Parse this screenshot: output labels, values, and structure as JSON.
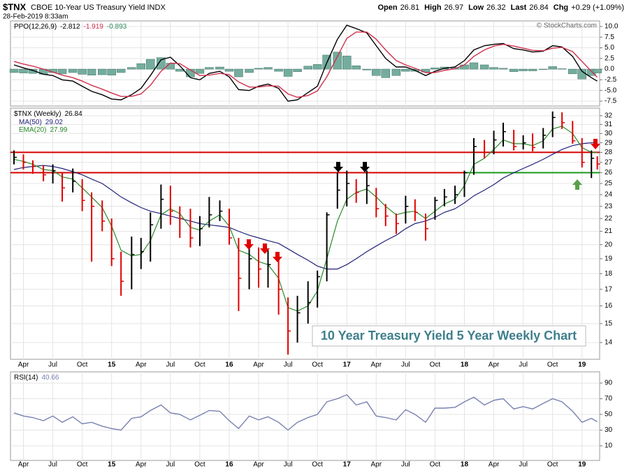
{
  "header": {
    "symbol": "$TNX",
    "name": "CBOE 10-Year US Treasury Yield INDX",
    "datetime": "28-Feb-2019 8:33am",
    "quote": [
      {
        "label": "Open",
        "value": "26.81"
      },
      {
        "label": "High",
        "value": "26.97"
      },
      {
        "label": "Low",
        "value": "26.32"
      },
      {
        "label": "Last",
        "value": "26.84"
      },
      {
        "label": "Chg",
        "value": "+0.29 (+1.09%)"
      }
    ]
  },
  "copyright": "© StockCharts.com",
  "chart_data": [
    {
      "type": "line",
      "legend_label": "PPO(12,26,9)",
      "ylim": [
        -8.65,
        11.3
      ],
      "grid": true,
      "yticks": [
        {
          "value": 10,
          "label": "10.0"
        },
        7.5,
        {
          "value": 5,
          "label": "5.0"
        },
        2.5,
        {
          "value": 0,
          "label": "0.0"
        },
        -2.5,
        {
          "value": -5,
          "label": "-5.0"
        },
        -7.5
      ],
      "histogram": {
        "color": "#74ad9e",
        "values": [
          -0.8,
          -0.9,
          -1.0,
          -1.2,
          -0.8,
          -1.1,
          -0.8,
          -1.2,
          -1.4,
          -1.3,
          -1.4,
          -0.8,
          0.4,
          1.3,
          2.3,
          2.7,
          1.4,
          -0.5,
          -1.8,
          -1.0,
          0.4,
          0.5,
          -0.5,
          -1.8,
          -0.8,
          0.2,
          0.4,
          -0.5,
          -1.7,
          -0.6,
          0.7,
          1.1,
          3.3,
          4.0,
          3.1,
          0.8,
          -0.2,
          -1.5,
          -2.0,
          -1.5,
          -0.5,
          -0.5,
          -0.7,
          0.3,
          0.5,
          0.4,
          1.0,
          1.5,
          1.0,
          0.4,
          0.2,
          -0.6,
          -0.4,
          -0.4,
          -0.1,
          0.6,
          0.1,
          -1.1,
          -2.3,
          -1.5,
          -0.893
        ]
      },
      "series": [
        {
          "color": "#000000",
          "values": [
            1.0,
            0.3,
            -0.3,
            -1.2,
            -1.5,
            -2.5,
            -2.8,
            -4.0,
            -5.2,
            -6.0,
            -7.0,
            -7.2,
            -6.0,
            -4.5,
            -1.5,
            2.2,
            2.8,
            0.8,
            -2.0,
            -2.5,
            -1.0,
            -0.5,
            -1.8,
            -4.8,
            -5.0,
            -4.0,
            -3.5,
            -4.5,
            -7.5,
            -7.2,
            -5.5,
            -4.0,
            1.5,
            7.0,
            10.3,
            9.5,
            8.5,
            5.5,
            2.5,
            0.5,
            0.5,
            -0.3,
            -1.5,
            -0.5,
            0.2,
            0.5,
            2.0,
            4.5,
            5.5,
            5.8,
            6.0,
            4.8,
            4.5,
            4.0,
            4.2,
            5.5,
            5.2,
            3.0,
            -0.5,
            -2.0,
            -2.812
          ]
        },
        {
          "color": "#d0304e",
          "values": [
            1.8,
            1.2,
            0.7,
            0.0,
            -0.7,
            -1.4,
            -2.0,
            -2.8,
            -3.8,
            -4.7,
            -5.6,
            -6.4,
            -6.4,
            -5.8,
            -3.8,
            -0.5,
            1.4,
            1.3,
            -0.2,
            -1.5,
            -1.4,
            -1.0,
            -1.3,
            -3.0,
            -4.2,
            -4.2,
            -3.9,
            -4.0,
            -5.8,
            -6.6,
            -6.2,
            -5.1,
            -1.8,
            3.0,
            7.2,
            8.7,
            8.7,
            7.0,
            4.5,
            2.0,
            1.0,
            0.2,
            -0.8,
            -0.8,
            -0.3,
            0.1,
            1.0,
            3.0,
            4.5,
            5.4,
            5.8,
            5.4,
            4.9,
            4.4,
            4.3,
            4.9,
            5.1,
            4.1,
            1.8,
            -0.5,
            -1.919
          ]
        }
      ]
    },
    {
      "type": "ohlc",
      "name": "$TNX (Weekly)",
      "log_scale": true,
      "ylim": [
        13.17,
        32.9
      ],
      "grid": true,
      "yticks": [
        14,
        15,
        16,
        17,
        18,
        19,
        20,
        21,
        22,
        23,
        24,
        25,
        26,
        27,
        28,
        29,
        30,
        31,
        32
      ],
      "xlim": [
        2014.14,
        2019.15
      ],
      "xticks": [
        {
          "value": 2014.25,
          "label": "Apr"
        },
        {
          "value": 2014.5,
          "label": "Jul"
        },
        {
          "value": 2014.75,
          "label": "Oct"
        },
        {
          "value": 2015.0,
          "label": "15"
        },
        {
          "value": 2015.25,
          "label": "Apr"
        },
        {
          "value": 2015.5,
          "label": "Jul"
        },
        {
          "value": 2015.75,
          "label": "Oct"
        },
        {
          "value": 2016.0,
          "label": "16"
        },
        {
          "value": 2016.25,
          "label": "Apr"
        },
        {
          "value": 2016.5,
          "label": "Jul"
        },
        {
          "value": 2016.75,
          "label": "Oct"
        },
        {
          "value": 2017.0,
          "label": "17"
        },
        {
          "value": 2017.25,
          "label": "Apr"
        },
        {
          "value": 2017.5,
          "label": "Jul"
        },
        {
          "value": 2017.75,
          "label": "Oct"
        },
        {
          "value": 2018.0,
          "label": "18"
        },
        {
          "value": 2018.25,
          "label": "Apr"
        },
        {
          "value": 2018.5,
          "label": "Jul"
        },
        {
          "value": 2018.75,
          "label": "Oct"
        },
        {
          "value": 2019.0,
          "label": "19"
        }
      ],
      "x": [
        2014.17,
        2014.25,
        2014.33,
        2014.42,
        2014.5,
        2014.58,
        2014.67,
        2014.75,
        2014.83,
        2014.92,
        2015.0,
        2015.08,
        2015.17,
        2015.25,
        2015.33,
        2015.42,
        2015.5,
        2015.58,
        2015.67,
        2015.75,
        2015.83,
        2015.92,
        2016.0,
        2016.08,
        2016.17,
        2016.25,
        2016.33,
        2016.42,
        2016.5,
        2016.58,
        2016.67,
        2016.75,
        2016.83,
        2016.92,
        2017.0,
        2017.08,
        2017.17,
        2017.25,
        2017.33,
        2017.42,
        2017.5,
        2017.58,
        2017.67,
        2017.75,
        2017.83,
        2017.92,
        2018.0,
        2018.08,
        2018.17,
        2018.25,
        2018.33,
        2018.42,
        2018.5,
        2018.58,
        2018.67,
        2018.75,
        2018.83,
        2018.92,
        2019.0,
        2019.08,
        2019.13
      ],
      "high": [
        28.2,
        27.8,
        27.2,
        26.7,
        26.8,
        26.0,
        26.4,
        25.4,
        24.2,
        23.5,
        22.0,
        19.5,
        20.6,
        20.5,
        22.5,
        24.9,
        24.8,
        23.0,
        22.8,
        22.2,
        23.8,
        23.5,
        22.8,
        20.5,
        20.2,
        19.8,
        19.6,
        18.9,
        16.5,
        16.6,
        17.5,
        18.2,
        22.5,
        26.0,
        26.2,
        25.4,
        26.2,
        24.6,
        23.2,
        22.4,
        23.9,
        23.6,
        22.4,
        23.8,
        24.5,
        24.8,
        26.2,
        29.5,
        29.3,
        30.3,
        31.2,
        30.4,
        29.8,
        30.0,
        30.6,
        32.5,
        32.4,
        31.4,
        29.5,
        28.2,
        27.6
      ],
      "low": [
        26.8,
        26.3,
        25.9,
        25.2,
        25.0,
        23.4,
        24.2,
        22.6,
        18.8,
        21.0,
        18.5,
        16.6,
        17.0,
        18.3,
        18.8,
        21.2,
        21.5,
        20.5,
        19.8,
        19.9,
        21.3,
        21.8,
        20.0,
        15.7,
        17.0,
        17.1,
        17.1,
        15.5,
        13.4,
        14.0,
        15.0,
        15.9,
        17.5,
        22.8,
        23.0,
        23.3,
        23.2,
        22.1,
        21.4,
        20.8,
        21.6,
        21.8,
        20.3,
        21.9,
        23.0,
        23.2,
        23.8,
        25.8,
        27.4,
        27.8,
        28.6,
        28.2,
        28.3,
        28.1,
        28.4,
        29.6,
        30.5,
        28.9,
        26.5,
        25.5,
        26.3
      ],
      "close": [
        27.5,
        27.0,
        26.6,
        25.8,
        26.2,
        24.6,
        25.2,
        23.5,
        23.0,
        21.8,
        19.0,
        17.5,
        19.3,
        19.5,
        21.5,
        23.6,
        22.6,
        22.0,
        20.5,
        21.2,
        22.3,
        22.6,
        20.5,
        17.7,
        19.0,
        18.3,
        18.6,
        17.0,
        14.6,
        15.6,
        16.2,
        17.8,
        22.3,
        24.4,
        25.0,
        24.2,
        24.8,
        22.8,
        22.2,
        21.6,
        23.0,
        22.5,
        21.2,
        23.5,
        23.8,
        24.0,
        26.0,
        28.6,
        28.0,
        29.3,
        30.2,
        28.6,
        29.0,
        28.5,
        29.8,
        31.8,
        31.2,
        29.2,
        27.0,
        27.4,
        26.84
      ],
      "up_color": "#000000",
      "down_color": "#e00000",
      "series": [
        {
          "name": "MA(50)",
          "color": "#22227a",
          "values": [
            26.3,
            26.5,
            26.6,
            26.7,
            26.6,
            26.4,
            26.1,
            25.8,
            25.4,
            25.0,
            24.4,
            23.8,
            23.3,
            22.9,
            22.6,
            22.4,
            22.2,
            22.0,
            21.8,
            21.6,
            21.5,
            21.4,
            21.3,
            21.0,
            20.7,
            20.5,
            20.3,
            20.1,
            19.7,
            19.3,
            18.9,
            18.5,
            18.3,
            18.3,
            18.6,
            19.0,
            19.5,
            19.9,
            20.3,
            20.7,
            21.2,
            21.6,
            21.8,
            22.1,
            22.5,
            22.8,
            23.3,
            23.9,
            24.4,
            24.9,
            25.5,
            26.0,
            26.4,
            26.8,
            27.3,
            27.8,
            28.3,
            28.7,
            28.9,
            29.0,
            29.02
          ]
        },
        {
          "name": "EMA(20)",
          "color": "#2a8a2a",
          "values": [
            27.3,
            27.1,
            26.8,
            26.3,
            26.2,
            25.6,
            25.4,
            24.6,
            23.8,
            22.9,
            21.4,
            19.6,
            19.2,
            19.3,
            20.3,
            22.3,
            22.8,
            22.4,
            21.3,
            21.1,
            21.8,
            22.3,
            21.4,
            19.6,
            19.3,
            18.8,
            18.6,
            17.7,
            15.9,
            15.7,
            16.0,
            16.9,
            19.0,
            21.8,
            23.6,
            24.2,
            24.5,
            23.8,
            23.0,
            22.3,
            22.5,
            22.6,
            22.0,
            22.6,
            23.2,
            23.6,
            24.8,
            26.8,
            27.4,
            28.3,
            29.3,
            28.9,
            28.9,
            28.7,
            29.2,
            30.5,
            30.8,
            30.0,
            28.5,
            28.0,
            27.99
          ]
        }
      ],
      "hlines": [
        {
          "value": 28,
          "color": "#d40000"
        },
        {
          "value": 26,
          "color": "#d40000",
          "to": 2018.0
        },
        {
          "value": 26,
          "color": "#1a9a1a",
          "from": 2018.0
        }
      ],
      "annotation": "10 Year Treasury Yield 5 Year Weekly Chart"
    },
    {
      "type": "line",
      "legend_label": "RSI(14)",
      "ylim": [
        -8.7,
        104.3
      ],
      "grid": true,
      "yticks": [
        90,
        70,
        50,
        30,
        10
      ],
      "series": [
        {
          "color": "#7880b0",
          "values": [
            52,
            48,
            46,
            42,
            48,
            40,
            47,
            38,
            40,
            35,
            32,
            30,
            45,
            47,
            55,
            62,
            52,
            50,
            43,
            49,
            55,
            54,
            42,
            32,
            48,
            43,
            47,
            40,
            30,
            40,
            46,
            50,
            66,
            70,
            75,
            62,
            66,
            48,
            46,
            43,
            56,
            50,
            40,
            58,
            58,
            59,
            66,
            72,
            62,
            68,
            70,
            57,
            60,
            57,
            64,
            70,
            66,
            54,
            40,
            45,
            40.66
          ]
        }
      ]
    }
  ]
}
